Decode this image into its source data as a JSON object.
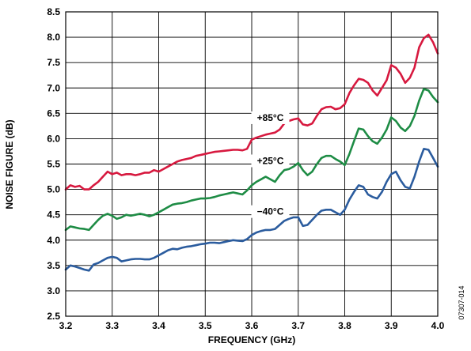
{
  "chart_data": {
    "type": "line",
    "title": "",
    "xlabel": "FREQUENCY (GHz)",
    "ylabel": "NOISE FIGURE (dB)",
    "xlim": [
      3.2,
      4.0
    ],
    "ylim": [
      2.5,
      8.5
    ],
    "x_ticks": [
      "3.2",
      "3.3",
      "3.4",
      "3.5",
      "3.6",
      "3.7",
      "3.8",
      "3.9",
      "4.0"
    ],
    "y_ticks": [
      "2.5",
      "3.0",
      "3.5",
      "4.0",
      "4.5",
      "5.0",
      "5.5",
      "6.0",
      "6.5",
      "7.0",
      "7.5",
      "8.0",
      "8.5"
    ],
    "grid": true,
    "figure_id": "07307-014",
    "series": [
      {
        "name": "+85°C",
        "color": "#d7193f",
        "x": [
          3.2,
          3.21,
          3.22,
          3.23,
          3.24,
          3.25,
          3.26,
          3.27,
          3.28,
          3.29,
          3.3,
          3.31,
          3.32,
          3.33,
          3.34,
          3.35,
          3.36,
          3.37,
          3.38,
          3.39,
          3.4,
          3.41,
          3.42,
          3.43,
          3.44,
          3.45,
          3.46,
          3.47,
          3.48,
          3.49,
          3.5,
          3.51,
          3.52,
          3.53,
          3.54,
          3.55,
          3.56,
          3.57,
          3.58,
          3.59,
          3.6,
          3.61,
          3.62,
          3.63,
          3.64,
          3.65,
          3.66,
          3.67,
          3.68,
          3.69,
          3.7,
          3.71,
          3.72,
          3.73,
          3.74,
          3.75,
          3.76,
          3.77,
          3.78,
          3.79,
          3.8,
          3.81,
          3.82,
          3.83,
          3.84,
          3.85,
          3.86,
          3.87,
          3.88,
          3.89,
          3.9,
          3.91,
          3.92,
          3.93,
          3.94,
          3.95,
          3.96,
          3.97,
          3.98,
          3.99,
          4.0
        ],
        "values": [
          5.0,
          5.08,
          5.05,
          5.07,
          5.0,
          5.0,
          5.08,
          5.15,
          5.25,
          5.35,
          5.3,
          5.33,
          5.28,
          5.3,
          5.3,
          5.28,
          5.3,
          5.33,
          5.33,
          5.38,
          5.35,
          5.4,
          5.45,
          5.5,
          5.55,
          5.58,
          5.6,
          5.62,
          5.66,
          5.68,
          5.7,
          5.72,
          5.74,
          5.75,
          5.76,
          5.77,
          5.78,
          5.78,
          5.77,
          5.8,
          5.98,
          6.02,
          6.05,
          6.08,
          6.1,
          6.12,
          6.18,
          6.3,
          6.35,
          6.38,
          6.4,
          6.28,
          6.26,
          6.3,
          6.45,
          6.58,
          6.62,
          6.63,
          6.58,
          6.6,
          6.68,
          6.9,
          7.05,
          7.18,
          7.16,
          7.1,
          6.95,
          6.85,
          7.0,
          7.15,
          7.45,
          7.4,
          7.28,
          7.1,
          7.2,
          7.4,
          7.8,
          7.98,
          8.05,
          7.9,
          7.68
        ]
      },
      {
        "name": "+25°C",
        "color": "#1e8c45",
        "x": [
          3.2,
          3.21,
          3.22,
          3.23,
          3.24,
          3.25,
          3.26,
          3.27,
          3.28,
          3.29,
          3.3,
          3.31,
          3.32,
          3.33,
          3.34,
          3.35,
          3.36,
          3.37,
          3.38,
          3.39,
          3.4,
          3.41,
          3.42,
          3.43,
          3.44,
          3.45,
          3.46,
          3.47,
          3.48,
          3.49,
          3.5,
          3.51,
          3.52,
          3.53,
          3.54,
          3.55,
          3.56,
          3.57,
          3.58,
          3.59,
          3.6,
          3.61,
          3.62,
          3.63,
          3.64,
          3.65,
          3.66,
          3.67,
          3.68,
          3.69,
          3.7,
          3.71,
          3.72,
          3.73,
          3.74,
          3.75,
          3.76,
          3.77,
          3.78,
          3.79,
          3.8,
          3.81,
          3.82,
          3.83,
          3.84,
          3.85,
          3.86,
          3.87,
          3.88,
          3.89,
          3.9,
          3.91,
          3.92,
          3.93,
          3.94,
          3.95,
          3.96,
          3.97,
          3.98,
          3.99,
          4.0
        ],
        "values": [
          4.2,
          4.27,
          4.25,
          4.23,
          4.22,
          4.2,
          4.3,
          4.4,
          4.48,
          4.52,
          4.48,
          4.42,
          4.45,
          4.5,
          4.48,
          4.5,
          4.52,
          4.5,
          4.47,
          4.5,
          4.55,
          4.6,
          4.65,
          4.7,
          4.72,
          4.73,
          4.75,
          4.78,
          4.8,
          4.82,
          4.82,
          4.83,
          4.85,
          4.88,
          4.9,
          4.92,
          4.94,
          4.92,
          4.9,
          4.98,
          5.08,
          5.15,
          5.2,
          5.25,
          5.2,
          5.15,
          5.28,
          5.38,
          5.4,
          5.45,
          5.52,
          5.38,
          5.28,
          5.35,
          5.5,
          5.62,
          5.66,
          5.66,
          5.6,
          5.55,
          5.48,
          5.7,
          5.95,
          6.2,
          6.18,
          6.05,
          5.95,
          5.9,
          6.02,
          6.18,
          6.42,
          6.35,
          6.22,
          6.15,
          6.25,
          6.45,
          6.75,
          6.98,
          6.95,
          6.82,
          6.72
        ]
      },
      {
        "name": "−40°C",
        "color": "#2b5c9e",
        "x": [
          3.2,
          3.21,
          3.22,
          3.23,
          3.24,
          3.25,
          3.26,
          3.27,
          3.28,
          3.29,
          3.3,
          3.31,
          3.32,
          3.33,
          3.34,
          3.35,
          3.36,
          3.37,
          3.38,
          3.39,
          3.4,
          3.41,
          3.42,
          3.43,
          3.44,
          3.45,
          3.46,
          3.47,
          3.48,
          3.49,
          3.5,
          3.51,
          3.52,
          3.53,
          3.54,
          3.55,
          3.56,
          3.57,
          3.58,
          3.59,
          3.6,
          3.61,
          3.62,
          3.63,
          3.64,
          3.65,
          3.66,
          3.67,
          3.68,
          3.69,
          3.7,
          3.71,
          3.72,
          3.73,
          3.74,
          3.75,
          3.76,
          3.77,
          3.78,
          3.79,
          3.8,
          3.81,
          3.82,
          3.83,
          3.84,
          3.85,
          3.86,
          3.87,
          3.88,
          3.89,
          3.9,
          3.91,
          3.92,
          3.93,
          3.94,
          3.95,
          3.96,
          3.97,
          3.98,
          3.99,
          4.0
        ],
        "values": [
          3.42,
          3.5,
          3.48,
          3.45,
          3.42,
          3.4,
          3.52,
          3.55,
          3.6,
          3.65,
          3.67,
          3.65,
          3.58,
          3.6,
          3.62,
          3.63,
          3.63,
          3.62,
          3.62,
          3.65,
          3.7,
          3.75,
          3.8,
          3.83,
          3.82,
          3.85,
          3.87,
          3.88,
          3.9,
          3.92,
          3.93,
          3.95,
          3.95,
          3.94,
          3.96,
          3.98,
          4.0,
          3.99,
          3.98,
          4.02,
          4.1,
          4.15,
          4.18,
          4.2,
          4.2,
          4.22,
          4.3,
          4.38,
          4.42,
          4.45,
          4.45,
          4.28,
          4.3,
          4.4,
          4.5,
          4.58,
          4.6,
          4.6,
          4.55,
          4.5,
          4.6,
          4.8,
          4.95,
          5.08,
          5.05,
          4.9,
          4.85,
          4.82,
          4.95,
          5.15,
          5.3,
          5.35,
          5.18,
          5.05,
          5.02,
          5.25,
          5.55,
          5.8,
          5.78,
          5.62,
          5.45
        ]
      }
    ],
    "annotations": [
      {
        "text": "+85°C",
        "x": 3.64,
        "y": 6.35
      },
      {
        "text": "+25°C",
        "x": 3.64,
        "y": 5.5
      },
      {
        "text": "−40°C",
        "x": 3.64,
        "y": 4.5
      }
    ]
  }
}
